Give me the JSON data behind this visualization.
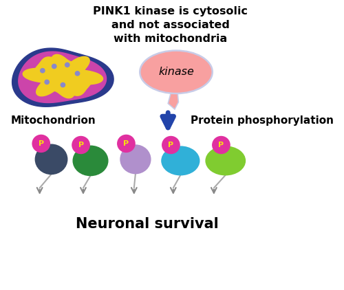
{
  "title_text": "PINK1 kinase is cytosolic\nand not associated\nwith mitochondria",
  "label_mitochondrion": "Mitochondrion",
  "label_kinase": "kinase",
  "label_phosphorylation": "Protein phosphorylation",
  "label_neuronal": "Neuronal survival",
  "bg_color": "#ffffff",
  "title_fontsize": 11.5,
  "label_fontsize": 11,
  "neuro_fontsize": 15,
  "mito_outer_color": "#2a3a8c",
  "mito_mid_color": "#cc44aa",
  "mito_inner_color": "#f0cc20",
  "mito_dot_color": "#8888cc",
  "kinase_bubble_color": "#f8a0a0",
  "kinase_bubble_edge": "#c8cce8",
  "arrow_color": "#2244aa",
  "gray_arrow_color": "#888888",
  "protein_colors": [
    "#3a4a66",
    "#2a8a3a",
    "#b090cc",
    "#30b0d8",
    "#80cc30"
  ],
  "p_circle_color": "#e030a0",
  "p_text_color": "#f8e010",
  "stem_color": "#aaaaaa"
}
